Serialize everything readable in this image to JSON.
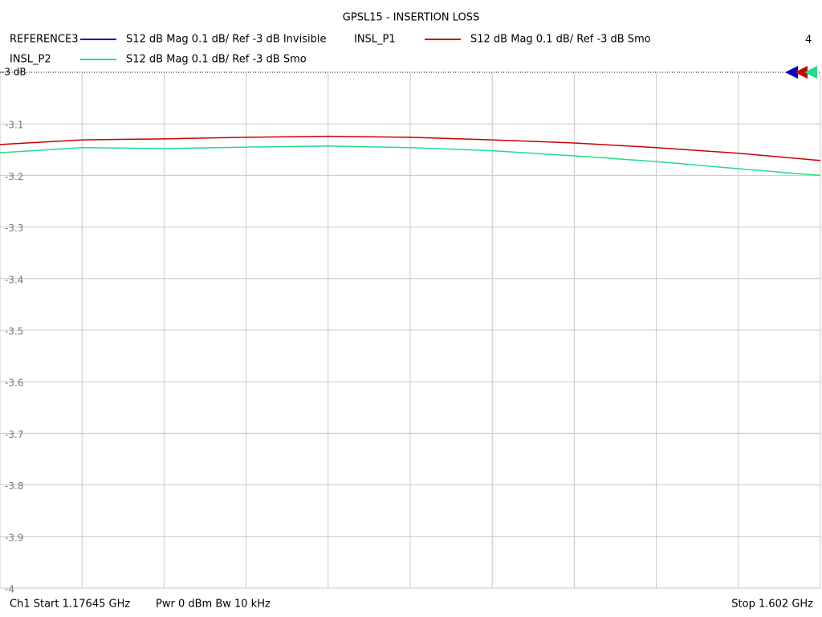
{
  "chart_data": {
    "type": "line",
    "title": "GPSL15 - INSERTION LOSS",
    "trace_count": "4",
    "footer": {
      "start": "Ch1  Start  1.17645 GHz",
      "power": "Pwr  0 dBm  Bw  10 kHz",
      "stop": "Stop  1.602 GHz"
    },
    "x": [
      1.17645,
      1.21901,
      1.26156,
      1.30412,
      1.34667,
      1.38923,
      1.43178,
      1.47434,
      1.51689,
      1.55945,
      1.602
    ],
    "xlim": [
      1.17645,
      1.602
    ],
    "ylim": [
      -4,
      -3
    ],
    "yticks": [
      {
        "value": -3,
        "label": "-3 dB"
      },
      -3.1,
      -3.2,
      -3.3,
      -3.4,
      -3.5,
      -3.6,
      -3.7,
      -3.8,
      -3.9,
      -4
    ],
    "grid": true,
    "series": [
      {
        "name": "REFERENCE3",
        "description": "S12  dB Mag  0.1 dB/ Ref -3 dB  Invisible",
        "color": "#0000cc",
        "values": [
          null,
          null,
          null,
          null,
          null,
          null,
          null,
          null,
          null,
          null,
          null
        ]
      },
      {
        "name": "INSL_P1",
        "description": "S12  dB Mag  0.1 dB/ Ref -3 dB  Smo",
        "color": "#cc0000",
        "values": [
          -3.14,
          -3.131,
          -3.129,
          -3.126,
          -3.124,
          -3.126,
          -3.131,
          -3.137,
          -3.146,
          -3.157,
          -3.171
        ]
      },
      {
        "name": "INSL_P2",
        "description": "S12  dB Mag  0.1 dB/ Ref -3 dB  Smo",
        "color": "#22dd88",
        "values": [
          -3.156,
          -3.146,
          -3.148,
          -3.145,
          -3.143,
          -3.146,
          -3.152,
          -3.162,
          -3.173,
          -3.187,
          -3.2
        ]
      }
    ]
  }
}
